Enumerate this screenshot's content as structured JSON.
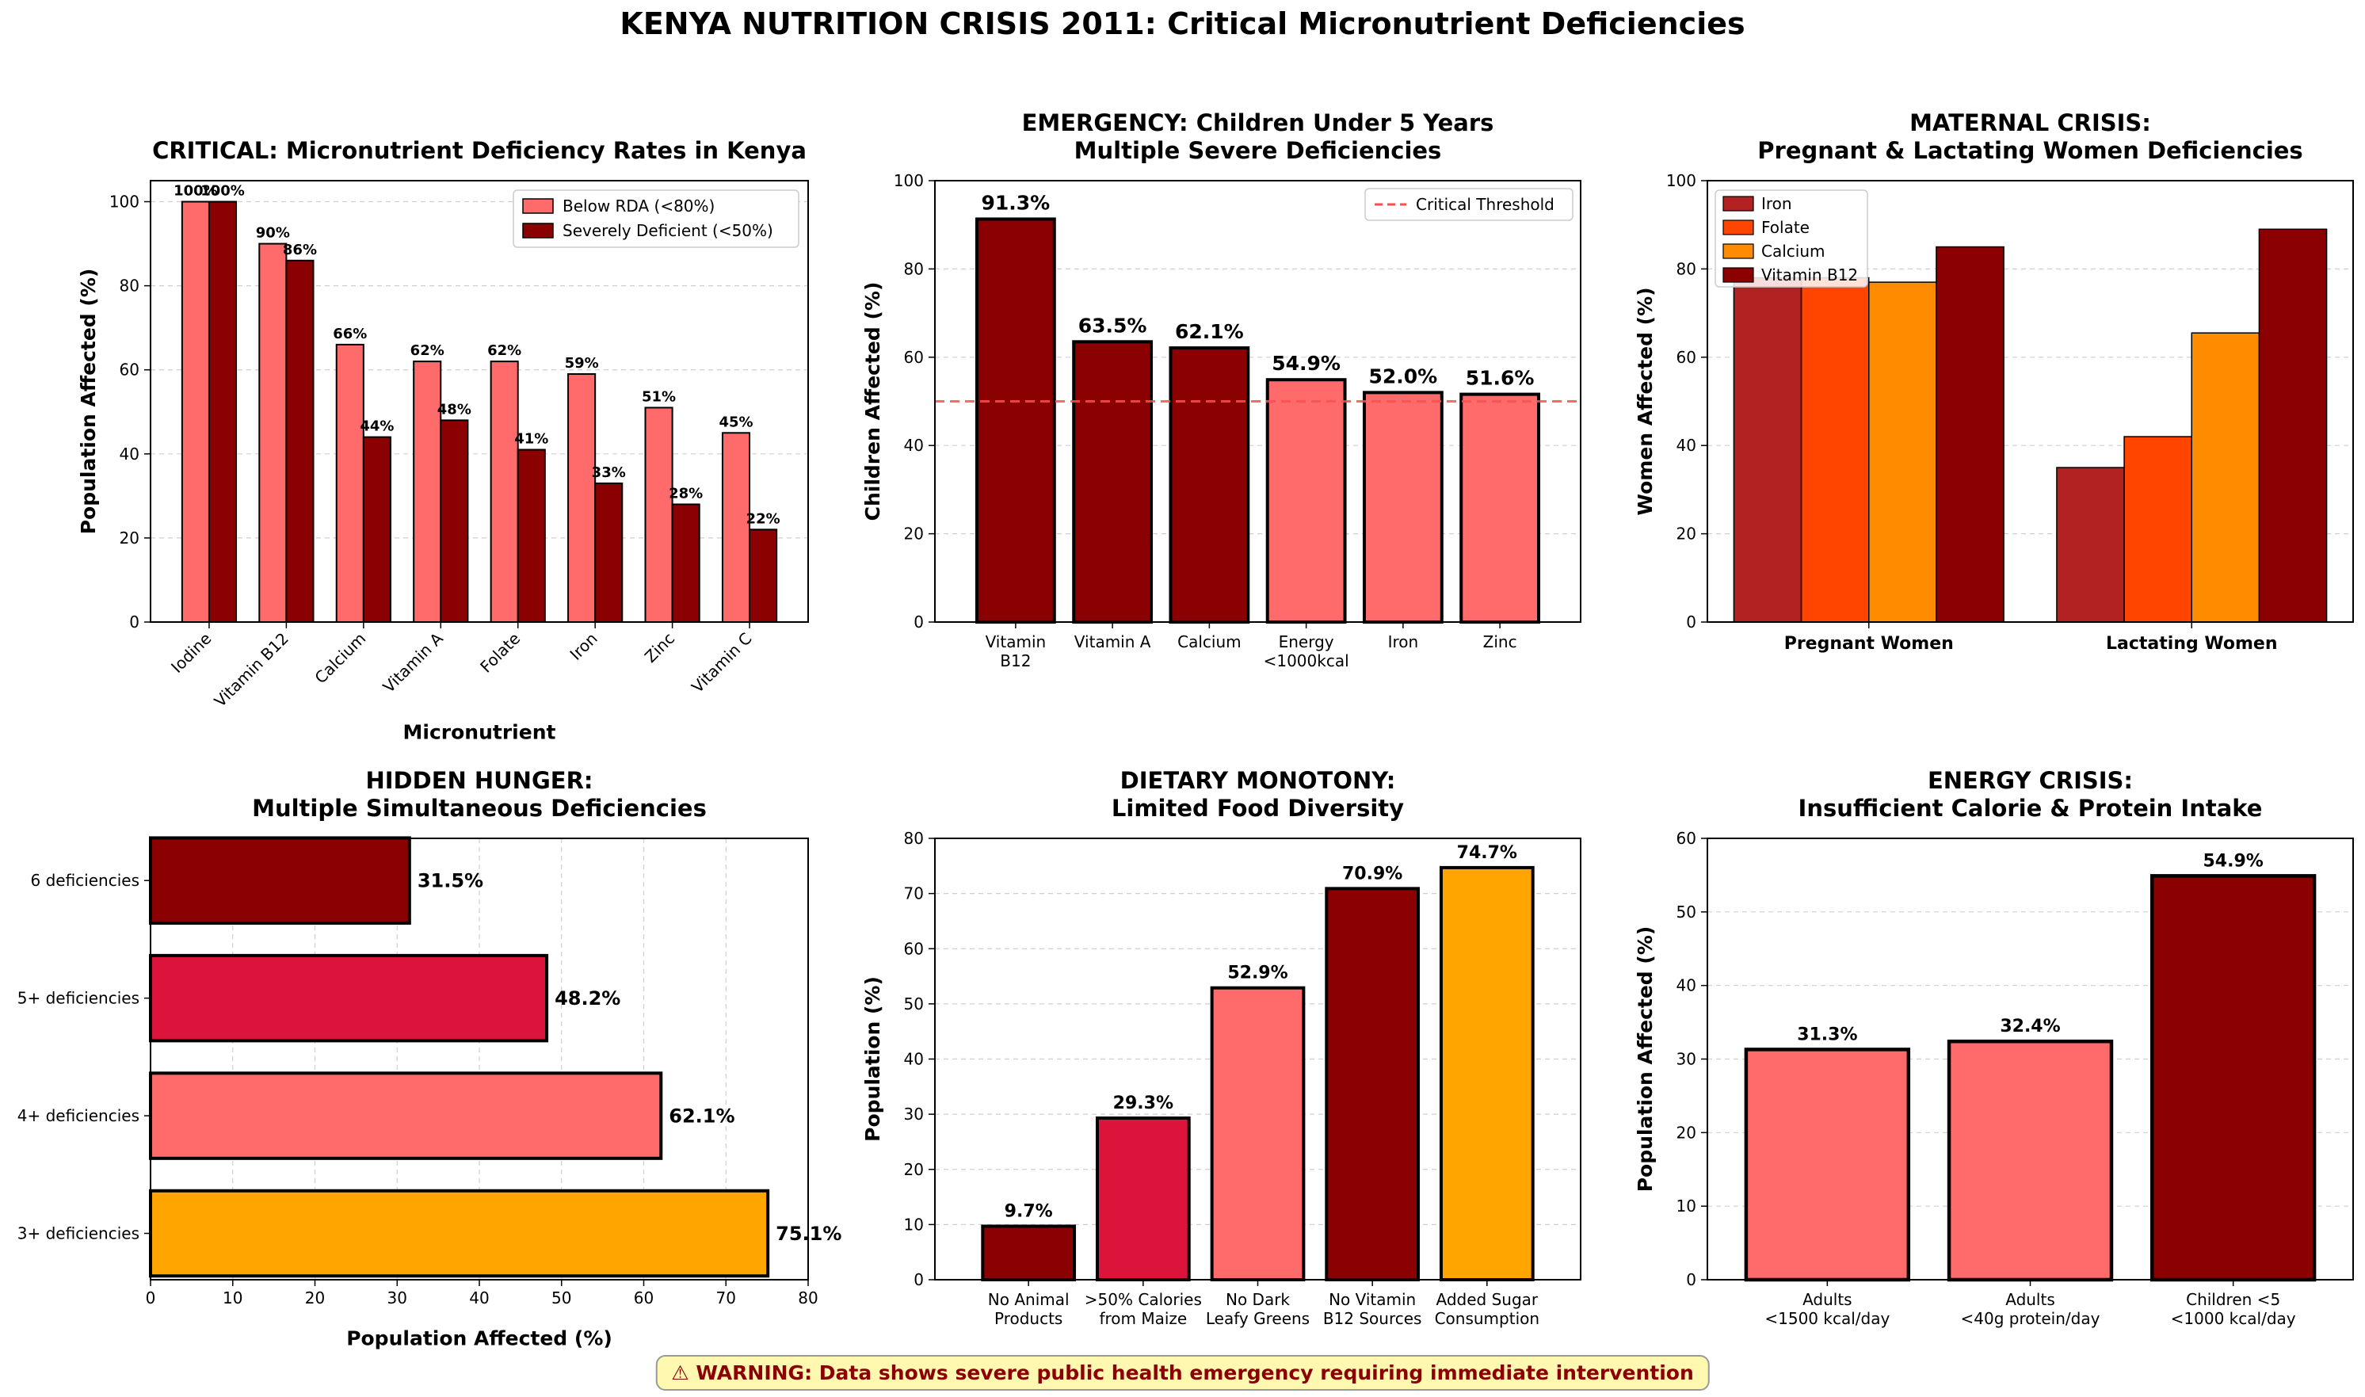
{
  "suptitle": "KENYA NUTRITION CRISIS 2011: Critical Micronutrient Deficiencies",
  "warning": "⚠ WARNING: Data shows severe public health emergency requiring immediate intervention",
  "chart_data": [
    {
      "type": "bar",
      "title": "CRITICAL: Micronutrient Deficiency Rates in Kenya",
      "xlabel": "Micronutrient",
      "ylabel": "Population Affected (%)",
      "ylim": [
        0,
        105
      ],
      "yticks": [
        0,
        20,
        40,
        60,
        80,
        100
      ],
      "grid": true,
      "legend": "top-right",
      "categories": [
        "Iodine",
        "Vitamin B12",
        "Calcium",
        "Vitamin A",
        "Folate",
        "Iron",
        "Zinc",
        "Vitamin C"
      ],
      "series": [
        {
          "name": "Below RDA (<80%)",
          "color": "#ff6b6b",
          "values": [
            100,
            90,
            66,
            62,
            62,
            59,
            51,
            45
          ],
          "labels": [
            "100%",
            "90%",
            "66%",
            "62%",
            "62%",
            "59%",
            "51%",
            "45%"
          ]
        },
        {
          "name": "Severely Deficient (<50%)",
          "color": "#8b0000",
          "values": [
            100,
            86,
            44,
            48,
            41,
            33,
            28,
            22
          ],
          "labels": [
            "100%",
            "86%",
            "44%",
            "48%",
            "41%",
            "33%",
            "28%",
            "22%"
          ]
        }
      ]
    },
    {
      "type": "bar",
      "title": "EMERGENCY: Children Under 5 Years\nMultiple Severe Deficiencies",
      "ylabel": "Children Affected (%)",
      "ylim": [
        0,
        100
      ],
      "yticks": [
        0,
        20,
        40,
        60,
        80,
        100
      ],
      "grid": true,
      "legend": "top-right",
      "threshold": {
        "value": 50,
        "name": "Critical Threshold",
        "color": "#ff4d4d"
      },
      "categories": [
        "Vitamin\nB12",
        "Vitamin A",
        "Calcium",
        "Energy\n<1000kcal",
        "Iron",
        "Zinc"
      ],
      "values": [
        91.3,
        63.5,
        62.1,
        54.9,
        52.0,
        51.6
      ],
      "labels": [
        "91.3%",
        "63.5%",
        "62.1%",
        "54.9%",
        "52.0%",
        "51.6%"
      ],
      "colors": [
        "#8b0000",
        "#8b0000",
        "#8b0000",
        "#ff6b6b",
        "#ff6b6b",
        "#ff6b6b"
      ]
    },
    {
      "type": "bar",
      "title": "MATERNAL CRISIS:\nPregnant & Lactating Women Deficiencies",
      "ylabel": "Women Affected (%)",
      "ylim": [
        0,
        100
      ],
      "yticks": [
        0,
        20,
        40,
        60,
        80,
        100
      ],
      "grid": true,
      "legend": "top-left",
      "categories": [
        "Pregnant Women",
        "Lactating Women"
      ],
      "series": [
        {
          "name": "Iron",
          "color": "#b22222",
          "values": [
            78,
            35
          ]
        },
        {
          "name": "Folate",
          "color": "#ff4500",
          "values": [
            78,
            42
          ]
        },
        {
          "name": "Calcium",
          "color": "#ff8c00",
          "values": [
            77,
            65.5
          ]
        },
        {
          "name": "Vitamin B12",
          "color": "#8b0000",
          "values": [
            85,
            89
          ]
        }
      ]
    },
    {
      "type": "barh",
      "title": "HIDDEN HUNGER:\nMultiple Simultaneous Deficiencies",
      "xlabel": "Population Affected (%)",
      "xlim": [
        0,
        80
      ],
      "xticks": [
        0,
        10,
        20,
        30,
        40,
        50,
        60,
        70,
        80
      ],
      "grid": true,
      "categories": [
        "6 deficiencies",
        "5+ deficiencies",
        "4+ deficiencies",
        "3+ deficiencies"
      ],
      "values": [
        31.5,
        48.2,
        62.1,
        75.1
      ],
      "labels": [
        "31.5%",
        "48.2%",
        "62.1%",
        "75.1%"
      ],
      "colors": [
        "#8b0000",
        "#dc143c",
        "#ff6b6b",
        "#ffa500"
      ]
    },
    {
      "type": "bar",
      "title": "DIETARY MONOTONY:\nLimited Food Diversity",
      "ylabel": "Population (%)",
      "ylim": [
        0,
        80
      ],
      "yticks": [
        0,
        10,
        20,
        30,
        40,
        50,
        60,
        70,
        80
      ],
      "grid": true,
      "categories": [
        "No Animal\nProducts",
        ">50% Calories\nfrom Maize",
        "No Dark\nLeafy Greens",
        "No Vitamin\nB12 Sources",
        "Added Sugar\nConsumption"
      ],
      "values": [
        9.7,
        29.3,
        52.9,
        70.9,
        74.7
      ],
      "labels": [
        "9.7%",
        "29.3%",
        "52.9%",
        "70.9%",
        "74.7%"
      ],
      "colors": [
        "#8b0000",
        "#dc143c",
        "#ff6b6b",
        "#8b0000",
        "#ffa500"
      ]
    },
    {
      "type": "bar",
      "title": "ENERGY CRISIS:\nInsufficient Calorie & Protein Intake",
      "ylabel": "Population Affected (%)",
      "ylim": [
        0,
        60
      ],
      "yticks": [
        0,
        10,
        20,
        30,
        40,
        50,
        60
      ],
      "grid": true,
      "categories": [
        "Adults\n<1500 kcal/day",
        "Adults\n<40g protein/day",
        "Children <5\n<1000 kcal/day"
      ],
      "values": [
        31.3,
        32.4,
        54.9
      ],
      "labels": [
        "31.3%",
        "32.4%",
        "54.9%"
      ],
      "colors": [
        "#ff6b6b",
        "#ff6b6b",
        "#8b0000"
      ]
    }
  ]
}
